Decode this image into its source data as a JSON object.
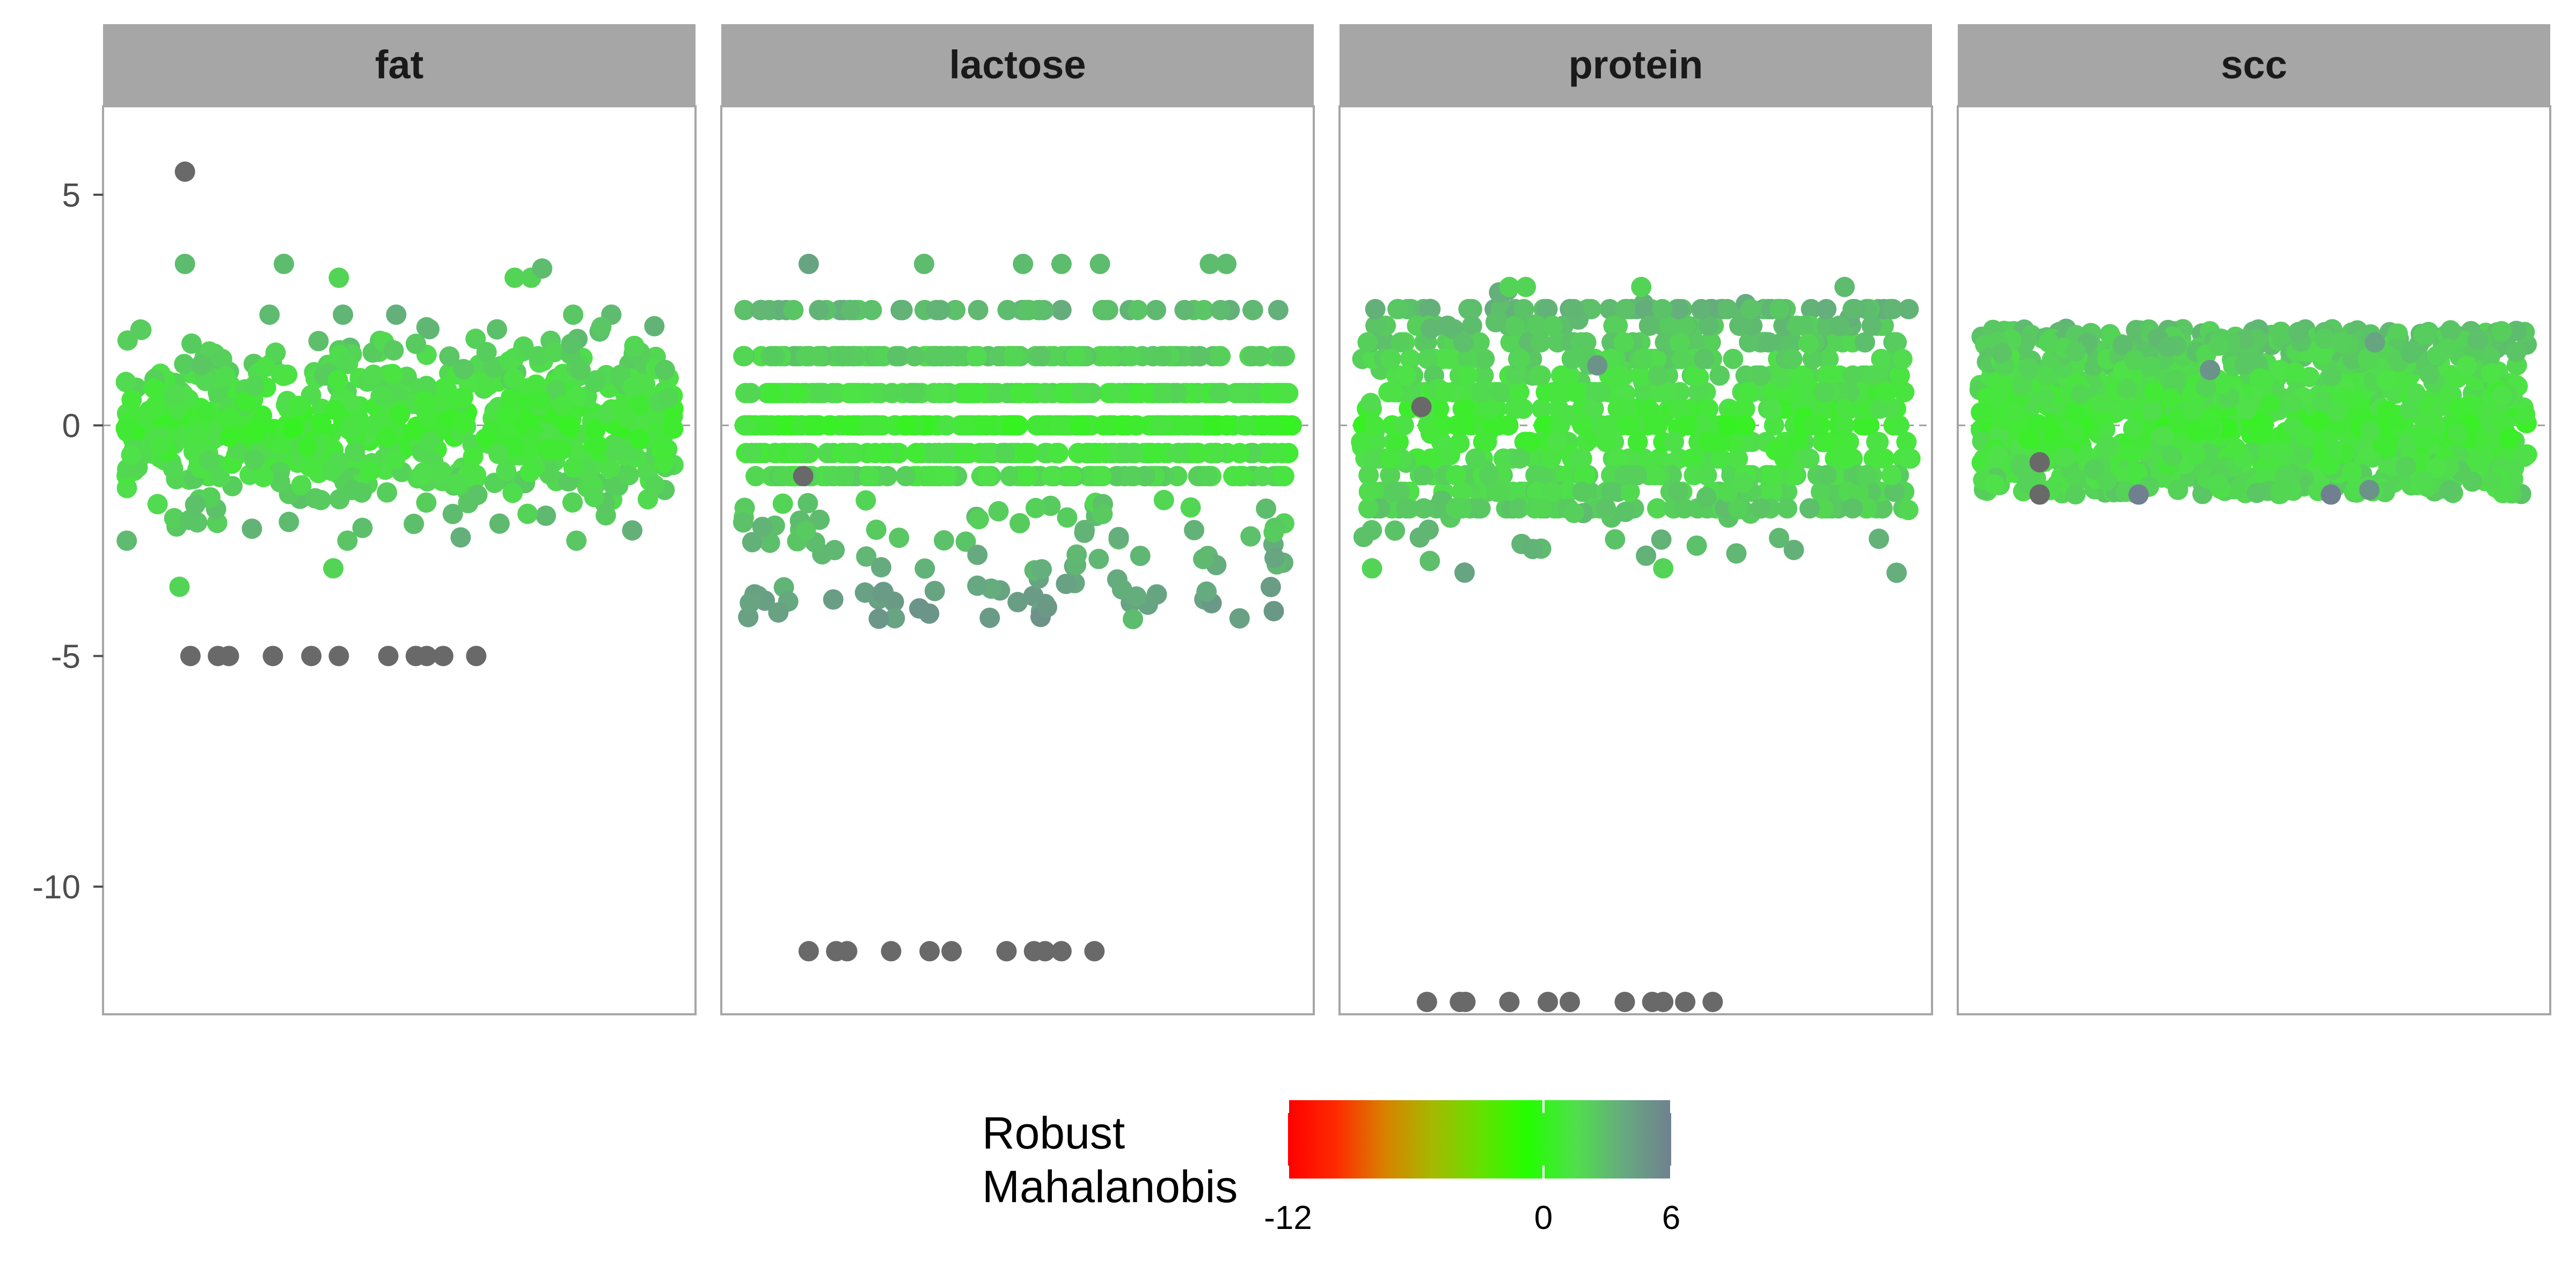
{
  "chart_data": {
    "type": "scatter",
    "facets": [
      "fat",
      "lactose",
      "protein",
      "scc"
    ],
    "ylim": [
      -13.2,
      8.0
    ],
    "y_ticks": [
      5,
      0,
      -5,
      -10
    ],
    "y_tick_labels": [
      "5",
      "0",
      "-5",
      "-10"
    ],
    "grid": false,
    "reference_line": 0,
    "legend": {
      "title_lines": [
        "Robust",
        "Mahalanobis"
      ],
      "position": "bottom",
      "range": [
        -12,
        6
      ],
      "ticks": [
        -12,
        0,
        6
      ],
      "tick_labels": [
        "-12",
        "0",
        "6"
      ],
      "gradient": [
        "#ff0000",
        "#ff2a00",
        "#d98000",
        "#a6b800",
        "#66e000",
        "#22ff00",
        "#4fe04a",
        "#66aa80",
        "#708090"
      ]
    },
    "facet_data": {
      "fat": {
        "n_points": 700,
        "core_range": [
          -2.5,
          2.4
        ],
        "dense_range": [
          -1.0,
          1.0
        ],
        "low_outliers": [
          {
            "x": 0.12,
            "y": -5.0
          },
          {
            "x": 0.17,
            "y": -5.0
          },
          {
            "x": 0.19,
            "y": -5.0
          },
          {
            "x": 0.27,
            "y": -5.0
          },
          {
            "x": 0.34,
            "y": -5.0
          },
          {
            "x": 0.39,
            "y": -5.0
          },
          {
            "x": 0.48,
            "y": -5.0
          },
          {
            "x": 0.53,
            "y": -5.0
          },
          {
            "x": 0.55,
            "y": -5.0
          },
          {
            "x": 0.58,
            "y": -5.0
          },
          {
            "x": 0.64,
            "y": -5.0
          }
        ],
        "high_points": [
          {
            "x": 0.11,
            "y": 5.5,
            "score": 8
          },
          {
            "x": 0.11,
            "y": 3.5,
            "score": 3
          },
          {
            "x": 0.29,
            "y": 3.5,
            "score": 3
          },
          {
            "x": 0.39,
            "y": 3.2,
            "score": 2
          },
          {
            "x": 0.71,
            "y": 3.2,
            "score": 2
          },
          {
            "x": 0.74,
            "y": 3.2,
            "score": 2
          },
          {
            "x": 0.76,
            "y": 3.4,
            "score": 3
          },
          {
            "x": 0.38,
            "y": -3.1,
            "score": 2
          },
          {
            "x": 0.1,
            "y": -3.5,
            "score": 2
          }
        ]
      },
      "lactose": {
        "n_points": 900,
        "levels": [
          2.5,
          1.5,
          0.7,
          0.0,
          -0.6,
          -1.1
        ],
        "scatter_range": [
          -4.2,
          -1.6
        ],
        "low_outliers": [
          {
            "x": 0.12,
            "y": -11.4
          },
          {
            "x": 0.17,
            "y": -11.4
          },
          {
            "x": 0.19,
            "y": -11.4
          },
          {
            "x": 0.27,
            "y": -11.4
          },
          {
            "x": 0.34,
            "y": -11.4
          },
          {
            "x": 0.38,
            "y": -11.4
          },
          {
            "x": 0.48,
            "y": -11.4
          },
          {
            "x": 0.53,
            "y": -11.4
          },
          {
            "x": 0.55,
            "y": -11.4
          },
          {
            "x": 0.58,
            "y": -11.4
          },
          {
            "x": 0.64,
            "y": -11.4
          }
        ],
        "high_points": [
          {
            "x": 0.12,
            "y": 3.5,
            "score": 4
          },
          {
            "x": 0.33,
            "y": 3.5,
            "score": 3
          },
          {
            "x": 0.51,
            "y": 3.5,
            "score": 3
          },
          {
            "x": 0.58,
            "y": 3.5,
            "score": 3
          },
          {
            "x": 0.65,
            "y": 3.5,
            "score": 3
          },
          {
            "x": 0.85,
            "y": 3.5,
            "score": 3
          },
          {
            "x": 0.88,
            "y": 3.5,
            "score": 3
          },
          {
            "x": 0.11,
            "y": -1.1,
            "score": 8
          },
          {
            "x": 0.71,
            "y": -4.2,
            "score": 3
          }
        ]
      },
      "protein": {
        "n_points": 900,
        "level_min": -1.8,
        "level_max": 2.6,
        "level_step": 0.36,
        "scatter_range": [
          -3.2,
          3.0
        ],
        "low_outliers": [
          {
            "x": 0.12,
            "y": -12.5
          },
          {
            "x": 0.18,
            "y": -12.5
          },
          {
            "x": 0.19,
            "y": -12.5
          },
          {
            "x": 0.27,
            "y": -12.5
          },
          {
            "x": 0.34,
            "y": -12.5
          },
          {
            "x": 0.38,
            "y": -12.5
          },
          {
            "x": 0.48,
            "y": -12.5
          },
          {
            "x": 0.53,
            "y": -12.5
          },
          {
            "x": 0.55,
            "y": -12.5
          },
          {
            "x": 0.59,
            "y": -12.5
          },
          {
            "x": 0.64,
            "y": -12.5
          }
        ],
        "high_points": [
          {
            "x": 0.27,
            "y": 3.0,
            "score": 2
          },
          {
            "x": 0.3,
            "y": 3.0,
            "score": 2
          },
          {
            "x": 0.51,
            "y": 3.0,
            "score": 2
          },
          {
            "x": 0.88,
            "y": 3.0,
            "score": 3
          },
          {
            "x": 0.11,
            "y": 0.4,
            "score": 8
          },
          {
            "x": 0.43,
            "y": 1.3,
            "score": 5
          },
          {
            "x": 0.55,
            "y": -3.1,
            "score": 2
          },
          {
            "x": 0.02,
            "y": -3.1,
            "score": 2
          }
        ]
      },
      "scc": {
        "n_points": 1200,
        "core_range": [
          -1.5,
          2.1
        ],
        "high_points": [
          {
            "x": 0.11,
            "y": -0.8,
            "score": 8
          },
          {
            "x": 0.11,
            "y": -1.5,
            "score": 7
          },
          {
            "x": 0.29,
            "y": -1.5,
            "score": 6
          },
          {
            "x": 0.64,
            "y": -1.5,
            "score": 6
          },
          {
            "x": 0.71,
            "y": -1.4,
            "score": 5
          },
          {
            "x": 0.42,
            "y": 1.2,
            "score": 5
          },
          {
            "x": 0.72,
            "y": 1.8,
            "score": 4
          }
        ]
      }
    }
  }
}
